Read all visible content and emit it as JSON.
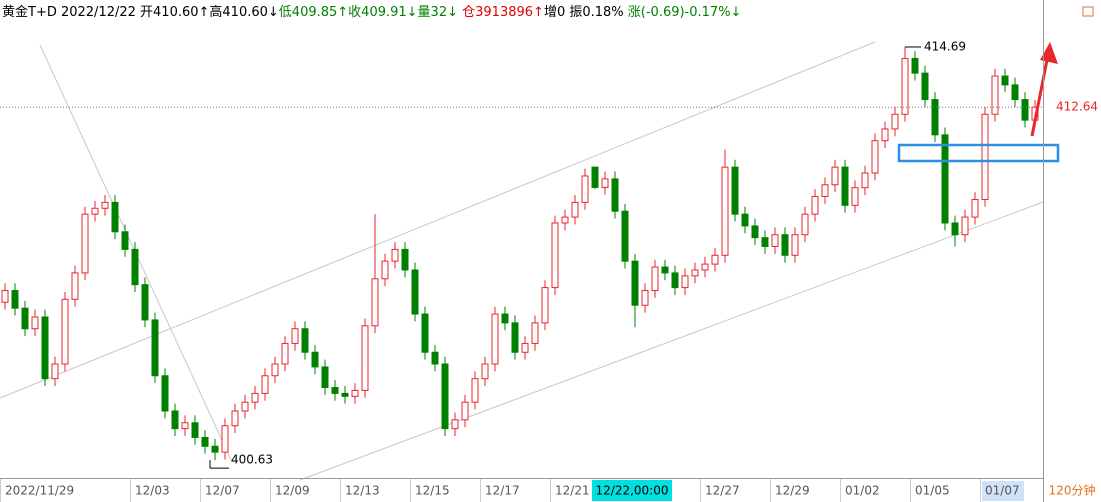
{
  "chart_data": {
    "type": "candlestick",
    "header": [
      {
        "text": "黄金T+D 2022/12/22 开410.60↑高410.60↓",
        "color": "#000000"
      },
      {
        "text": "低409.85↑收409.91↓量32↓",
        "color": "#008000"
      },
      {
        "text": " 仓3913896↑",
        "color": "#e00000"
      },
      {
        "text": "增0 振0.18% ",
        "color": "#000000"
      },
      {
        "text": "涨(-0.69)-0.17%↓",
        "color": "#008000"
      }
    ],
    "period": "120分钟",
    "cursor_label": "12/22,00:00",
    "up_color": "#e8262b",
    "down_color": "#008000",
    "ylim": [
      400.02,
      415.54
    ],
    "categories": [
      "2022/11/29",
      null,
      null,
      null,
      null,
      null,
      null,
      null,
      null,
      null,
      null,
      null,
      null,
      "12/03",
      null,
      null,
      null,
      null,
      null,
      null,
      "12/07",
      null,
      null,
      null,
      null,
      null,
      null,
      "12/09",
      null,
      null,
      null,
      null,
      null,
      null,
      "12/13",
      null,
      null,
      null,
      null,
      null,
      null,
      "12/15",
      null,
      null,
      null,
      null,
      null,
      null,
      "12/17",
      null,
      null,
      null,
      null,
      null,
      null,
      "12/21",
      null,
      null,
      null,
      null,
      null,
      null,
      null,
      null,
      null,
      null,
      null,
      null,
      null,
      null,
      "12/27",
      null,
      null,
      null,
      null,
      null,
      null,
      "12/29",
      null,
      null,
      null,
      null,
      null,
      null,
      "01/02",
      null,
      null,
      null,
      null,
      null,
      null,
      "01/05",
      null,
      null,
      null,
      null,
      null,
      null,
      "01/07",
      null,
      null,
      null,
      null,
      null
    ],
    "open": [
      406.0,
      406.4,
      405.8,
      405.1,
      405.5,
      403.4,
      403.9,
      406.1,
      407.0,
      409.0,
      409.2,
      409.4,
      408.4,
      407.8,
      406.6,
      405.4,
      403.5,
      402.3,
      401.7,
      401.9,
      401.4,
      401.1,
      400.9,
      401.8,
      402.3,
      402.6,
      402.9,
      403.5,
      403.9,
      404.6,
      405.1,
      404.3,
      403.8,
      403.1,
      402.9,
      402.8,
      403.0,
      405.2,
      406.8,
      407.4,
      407.8,
      407.1,
      405.6,
      404.3,
      403.9,
      401.7,
      402.0,
      402.6,
      403.4,
      403.9,
      405.6,
      405.3,
      404.3,
      404.6,
      405.3,
      406.5,
      408.7,
      408.9,
      409.4,
      410.6,
      409.91,
      410.2,
      409.1,
      407.4,
      405.9,
      406.4,
      407.2,
      407.0,
      406.5,
      406.9,
      407.1,
      407.3,
      407.6,
      410.6,
      409.0,
      408.6,
      408.2,
      407.9,
      408.3,
      407.6,
      408.3,
      409.0,
      409.6,
      410.0,
      410.6,
      409.3,
      409.9,
      410.4,
      411.5,
      411.9,
      412.4,
      414.3,
      413.8,
      412.9,
      411.7,
      408.7,
      408.3,
      408.9,
      409.5,
      412.4,
      413.7,
      413.4,
      412.9,
      412.2
    ],
    "high": [
      406.65,
      406.65,
      406.05,
      405.75,
      405.75,
      404.15,
      406.35,
      407.25,
      409.25,
      409.45,
      409.65,
      409.65,
      408.65,
      408.05,
      406.85,
      405.65,
      403.75,
      402.55,
      402.15,
      402.15,
      401.65,
      401.35,
      402.05,
      402.55,
      402.85,
      403.15,
      403.75,
      404.15,
      404.85,
      405.35,
      405.35,
      404.55,
      404.05,
      403.35,
      403.15,
      403.25,
      405.45,
      409.0,
      407.65,
      408.05,
      408.05,
      407.35,
      405.85,
      404.55,
      404.15,
      402.25,
      402.85,
      403.65,
      404.15,
      405.85,
      405.85,
      405.55,
      404.85,
      405.55,
      406.75,
      408.95,
      409.15,
      409.65,
      410.55,
      410.6,
      410.45,
      410.45,
      409.35,
      407.65,
      406.65,
      407.45,
      407.45,
      407.25,
      407.15,
      407.35,
      407.55,
      407.85,
      411.2,
      410.85,
      409.25,
      408.85,
      408.45,
      408.55,
      408.55,
      408.55,
      409.25,
      409.85,
      410.25,
      410.85,
      410.85,
      410.15,
      410.65,
      411.75,
      412.15,
      412.65,
      414.69,
      414.55,
      414.05,
      413.15,
      411.95,
      408.95,
      409.15,
      409.75,
      412.65,
      413.95,
      413.95,
      413.65,
      413.15,
      412.89
    ],
    "low": [
      405.75,
      405.55,
      404.85,
      404.85,
      403.15,
      403.15,
      403.65,
      405.85,
      406.75,
      408.75,
      408.95,
      408.15,
      407.55,
      406.35,
      405.15,
      403.25,
      402.05,
      401.45,
      401.45,
      401.15,
      400.85,
      400.63,
      400.65,
      401.55,
      402.05,
      402.35,
      402.65,
      403.25,
      403.65,
      404.35,
      404.05,
      403.55,
      402.85,
      402.65,
      402.55,
      402.55,
      402.75,
      404.95,
      406.55,
      407.15,
      406.85,
      405.35,
      404.05,
      403.65,
      401.45,
      401.45,
      401.75,
      402.35,
      403.15,
      403.65,
      405.05,
      404.05,
      404.05,
      404.35,
      405.05,
      406.25,
      408.45,
      408.65,
      409.15,
      409.85,
      409.66,
      408.85,
      407.15,
      405.15,
      405.65,
      406.15,
      406.75,
      406.25,
      406.25,
      406.65,
      406.85,
      407.05,
      407.35,
      408.75,
      408.35,
      407.95,
      407.65,
      407.65,
      407.35,
      407.35,
      408.05,
      408.75,
      409.35,
      409.75,
      409.05,
      409.05,
      409.65,
      410.15,
      411.25,
      411.65,
      412.15,
      413.55,
      412.65,
      411.45,
      408.45,
      407.9,
      408.05,
      408.65,
      409.25,
      412.15,
      413.15,
      412.65,
      411.95,
      411.95
    ],
    "close": [
      406.4,
      405.8,
      405.1,
      405.5,
      403.4,
      403.9,
      406.1,
      407.0,
      409.0,
      409.2,
      409.4,
      408.4,
      407.8,
      406.6,
      405.4,
      403.5,
      402.3,
      401.7,
      401.9,
      401.4,
      401.1,
      400.9,
      401.8,
      402.3,
      402.6,
      402.9,
      403.5,
      403.9,
      404.6,
      405.1,
      404.3,
      403.8,
      403.1,
      402.9,
      402.8,
      403.0,
      405.2,
      406.8,
      407.4,
      407.8,
      407.1,
      405.6,
      404.3,
      403.9,
      401.7,
      402.0,
      402.6,
      403.4,
      403.9,
      405.6,
      405.3,
      404.3,
      404.6,
      405.3,
      406.5,
      408.7,
      408.9,
      409.4,
      410.3,
      409.91,
      410.2,
      409.1,
      407.4,
      405.9,
      406.4,
      407.2,
      407.0,
      406.5,
      406.9,
      407.1,
      407.3,
      407.6,
      410.6,
      409.0,
      408.6,
      408.2,
      407.9,
      408.3,
      407.6,
      408.3,
      409.0,
      409.6,
      410.0,
      410.6,
      409.3,
      409.9,
      410.4,
      411.5,
      411.9,
      412.4,
      414.3,
      413.8,
      412.9,
      411.7,
      408.7,
      408.3,
      408.9,
      409.5,
      412.4,
      413.7,
      413.4,
      412.9,
      412.2,
      412.64
    ]
  }
}
